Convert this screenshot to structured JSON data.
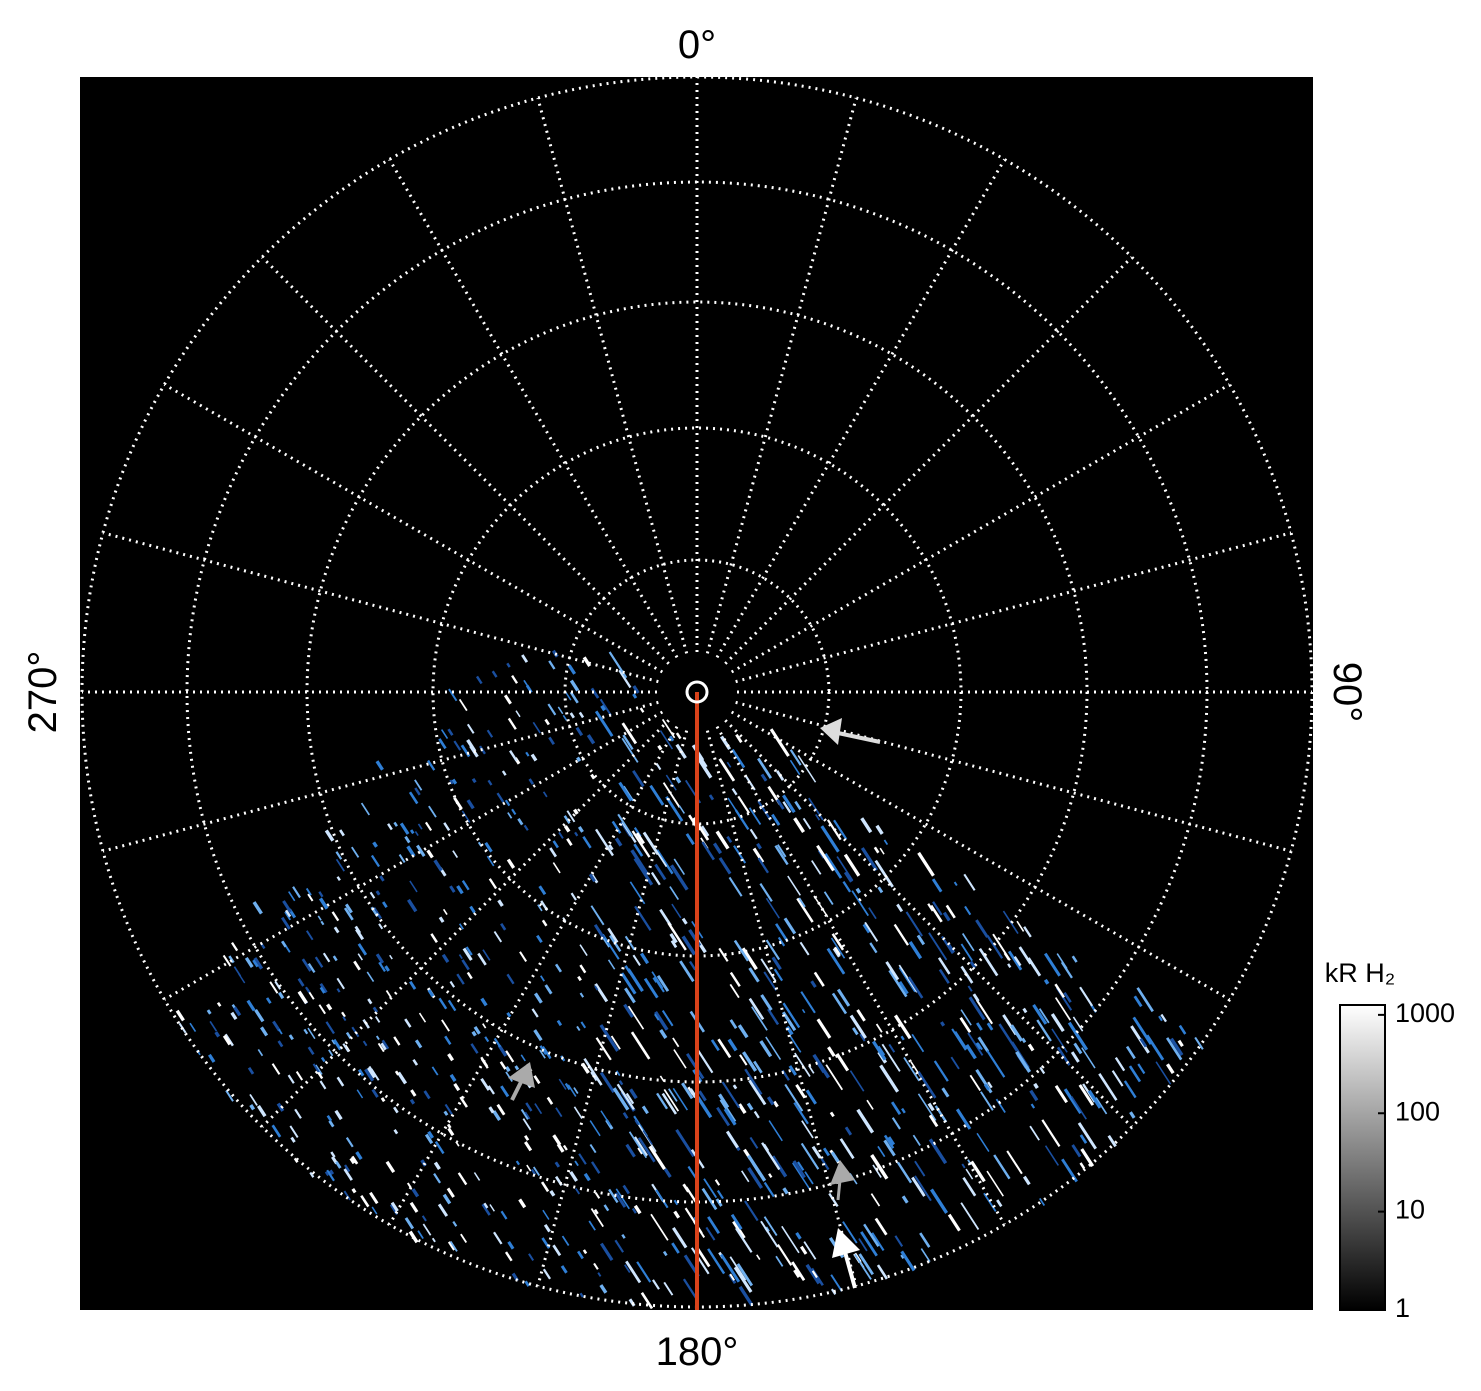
{
  "labels": {
    "top": "0°",
    "right": "90°",
    "bottom": "180°",
    "left": "270°"
  },
  "colorbar": {
    "title": "kR H₂",
    "ticks": [
      1,
      10,
      100,
      1000
    ],
    "lim": [
      1,
      1260
    ],
    "log": true
  }
}
